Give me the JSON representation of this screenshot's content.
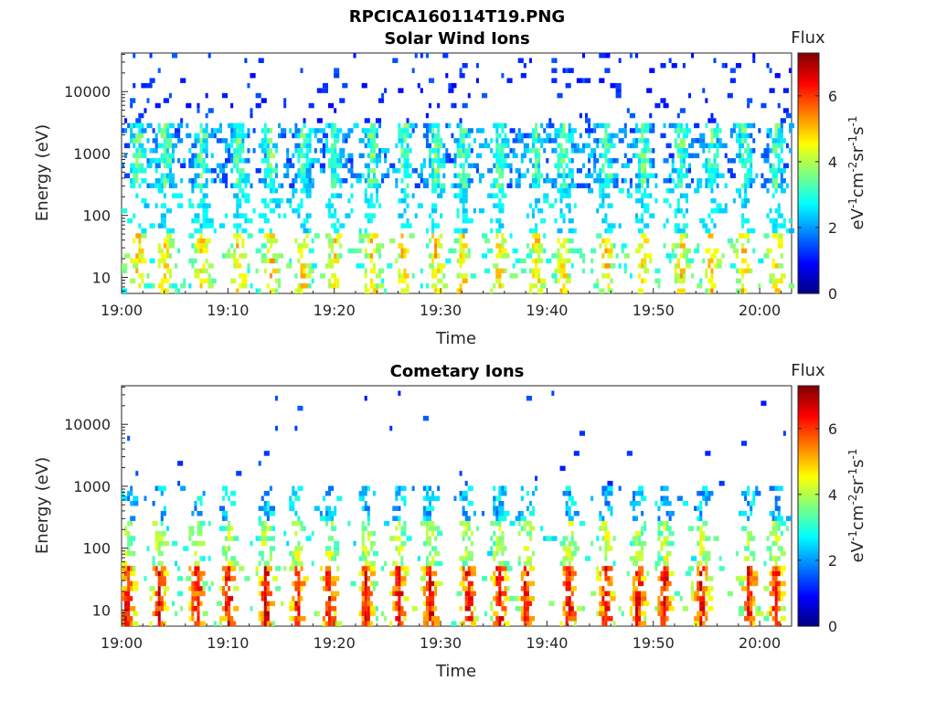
{
  "figure_title": "RPCICA160114T19.PNG",
  "chart_data": [
    {
      "type": "heatmap",
      "title": "Solar Wind Ions",
      "xlabel": "Time",
      "ylabel": "Energy (eV)",
      "x_ticks": [
        "19:00",
        "19:10",
        "19:20",
        "19:30",
        "19:40",
        "19:50",
        "20:00"
      ],
      "x_range_min": [
        0,
        63
      ],
      "y_scale": "log",
      "y_ticks": [
        10,
        100,
        1000,
        10000
      ],
      "y_tick_labels": [
        "10",
        "100",
        "1000",
        "10000"
      ],
      "ylim": [
        5.5,
        42000
      ],
      "colorbar": {
        "label": "Flux",
        "unit_label": "eV-1cm-2sr-1s-1",
        "range": [
          0,
          7.3
        ],
        "ticks": [
          "0",
          "2",
          "4",
          "6"
        ]
      },
      "colormap": "jet",
      "grid": false,
      "spikes_min": [
        1.5,
        4,
        7.5,
        11,
        14,
        17,
        20,
        23.5,
        26.5,
        29.5,
        32,
        35.5,
        39,
        41.5,
        45.5,
        49,
        52.5,
        55.5,
        58.5,
        61.5
      ],
      "peak_flux": 6.2
    },
    {
      "type": "heatmap",
      "title": "Cometary Ions",
      "xlabel": "Time",
      "ylabel": "Energy (eV)",
      "x_ticks": [
        "19:00",
        "19:10",
        "19:20",
        "19:30",
        "19:40",
        "19:50",
        "20:00"
      ],
      "x_range_min": [
        0,
        63
      ],
      "y_scale": "log",
      "y_ticks": [
        10,
        100,
        1000,
        10000
      ],
      "y_tick_labels": [
        "10",
        "100",
        "1000",
        "10000"
      ],
      "ylim": [
        5.5,
        42000
      ],
      "colorbar": {
        "label": "Flux",
        "unit_label": "eV-1cm-2sr-1s-1",
        "range": [
          0,
          7.3
        ],
        "ticks": [
          "0",
          "2",
          "4",
          "6"
        ]
      },
      "colormap": "jet",
      "grid": false,
      "spikes_min": [
        0.5,
        3.5,
        7,
        10,
        13.5,
        16.5,
        19.5,
        23,
        26,
        29,
        32.5,
        35.5,
        38,
        42,
        45.5,
        48.5,
        51,
        54.5,
        59,
        61.5
      ],
      "peak_flux": 7.0
    }
  ]
}
